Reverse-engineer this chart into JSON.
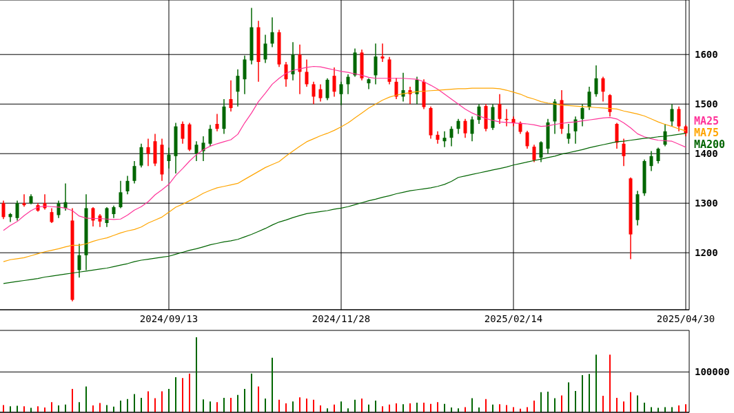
{
  "chart_data": [
    {
      "type": "candlestick",
      "categories": [
        null,
        null,
        null,
        null,
        null,
        null,
        null,
        null,
        null,
        null,
        null,
        null,
        null,
        null,
        null,
        null,
        null,
        null,
        null,
        null,
        null,
        null,
        null,
        null,
        "2024/09/13",
        null,
        null,
        null,
        null,
        null,
        null,
        null,
        null,
        null,
        null,
        null,
        null,
        null,
        null,
        null,
        null,
        null,
        null,
        null,
        null,
        null,
        null,
        null,
        null,
        "2024/11/28",
        null,
        null,
        null,
        null,
        null,
        null,
        null,
        null,
        null,
        null,
        null,
        null,
        null,
        null,
        null,
        null,
        null,
        null,
        null,
        null,
        null,
        null,
        null,
        null,
        "2025/02/14",
        null,
        null,
        null,
        null,
        null,
        null,
        null,
        null,
        null,
        null,
        null,
        null,
        null,
        null,
        null,
        null,
        null,
        null,
        null,
        null,
        null,
        null,
        null,
        null,
        "2025/04/30"
      ],
      "ohlc": [
        [
          1300,
          1305,
          1268,
          1272
        ],
        [
          1272,
          1280,
          1262,
          1278
        ],
        [
          1270,
          1305,
          1265,
          1300
        ],
        [
          1300,
          1318,
          1293,
          1296
        ],
        [
          1300,
          1318,
          1298,
          1314
        ],
        [
          1296,
          1300,
          1283,
          1285
        ],
        [
          1300,
          1318,
          1287,
          1290
        ],
        [
          1282,
          1290,
          1260,
          1262
        ],
        [
          1276,
          1305,
          1270,
          1300
        ],
        [
          1290,
          1340,
          1285,
          1302
        ],
        [
          1265,
          1290,
          1102,
          1105
        ],
        [
          1165,
          1218,
          1150,
          1195
        ],
        [
          1195,
          1318,
          1165,
          1290
        ],
        [
          1290,
          1292,
          1253,
          1265
        ],
        [
          1275,
          1278,
          1252,
          1263
        ],
        [
          1260,
          1292,
          1252,
          1290
        ],
        [
          1278,
          1295,
          1270,
          1292
        ],
        [
          1292,
          1345,
          1290,
          1322
        ],
        [
          1324,
          1355,
          1318,
          1345
        ],
        [
          1345,
          1385,
          1340,
          1375
        ],
        [
          1376,
          1420,
          1372,
          1413
        ],
        [
          1413,
          1430,
          1375,
          1400
        ],
        [
          1425,
          1440,
          1375,
          1380
        ],
        [
          1418,
          1430,
          1345,
          1358
        ],
        [
          1385,
          1412,
          1370,
          1398
        ],
        [
          1395,
          1462,
          1360,
          1455
        ],
        [
          1460,
          1465,
          1420,
          1430
        ],
        [
          1459,
          1462,
          1405,
          1408
        ],
        [
          1400,
          1425,
          1385,
          1418
        ],
        [
          1405,
          1435,
          1385,
          1422
        ],
        [
          1420,
          1458,
          1415,
          1450
        ],
        [
          1460,
          1480,
          1445,
          1450
        ],
        [
          1450,
          1510,
          1440,
          1495
        ],
        [
          1510,
          1548,
          1485,
          1492
        ],
        [
          1525,
          1570,
          1495,
          1557
        ],
        [
          1550,
          1598,
          1520,
          1590
        ],
        [
          1588,
          1694,
          1580,
          1655
        ],
        [
          1655,
          1668,
          1545,
          1585
        ],
        [
          1590,
          1640,
          1583,
          1622
        ],
        [
          1622,
          1675,
          1615,
          1645
        ],
        [
          1645,
          1650,
          1575,
          1580
        ],
        [
          1580,
          1585,
          1535,
          1550
        ],
        [
          1560,
          1625,
          1548,
          1600
        ],
        [
          1600,
          1620,
          1520,
          1565
        ],
        [
          1565,
          1590,
          1535,
          1540
        ],
        [
          1540,
          1545,
          1500,
          1515
        ],
        [
          1530,
          1540,
          1505,
          1512
        ],
        [
          1512,
          1552,
          1508,
          1549
        ],
        [
          1557,
          1574,
          1515,
          1525
        ],
        [
          1520,
          1545,
          1498,
          1540
        ],
        [
          1540,
          1560,
          1520,
          1555
        ],
        [
          1558,
          1612,
          1555,
          1604
        ],
        [
          1604,
          1610,
          1548,
          1552
        ],
        [
          1542,
          1552,
          1530,
          1550
        ],
        [
          1558,
          1622,
          1540,
          1596
        ],
        [
          1596,
          1622,
          1585,
          1592
        ],
        [
          1590,
          1595,
          1540,
          1545
        ],
        [
          1545,
          1553,
          1510,
          1515
        ],
        [
          1515,
          1563,
          1505,
          1528
        ],
        [
          1528,
          1535,
          1500,
          1520
        ],
        [
          1520,
          1555,
          1500,
          1549
        ],
        [
          1545,
          1550,
          1490,
          1494
        ],
        [
          1492,
          1495,
          1430,
          1437
        ],
        [
          1438,
          1445,
          1420,
          1428
        ],
        [
          1425,
          1445,
          1413,
          1432
        ],
        [
          1432,
          1455,
          1415,
          1450
        ],
        [
          1450,
          1470,
          1440,
          1466
        ],
        [
          1466,
          1470,
          1432,
          1441
        ],
        [
          1440,
          1475,
          1425,
          1469
        ],
        [
          1468,
          1500,
          1460,
          1495
        ],
        [
          1496,
          1500,
          1445,
          1450
        ],
        [
          1452,
          1500,
          1448,
          1494
        ],
        [
          1500,
          1520,
          1460,
          1470
        ],
        [
          1470,
          1490,
          1455,
          1468
        ],
        [
          1470,
          1475,
          1455,
          1462
        ],
        [
          1462,
          1465,
          1440,
          1444
        ],
        [
          1443,
          1446,
          1410,
          1415
        ],
        [
          1414,
          1418,
          1383,
          1387
        ],
        [
          1392,
          1425,
          1383,
          1423
        ],
        [
          1410,
          1470,
          1400,
          1463
        ],
        [
          1465,
          1510,
          1440,
          1505
        ],
        [
          1508,
          1528,
          1440,
          1450
        ],
        [
          1430,
          1460,
          1420,
          1441
        ],
        [
          1445,
          1475,
          1420,
          1469
        ],
        [
          1470,
          1500,
          1455,
          1492
        ],
        [
          1494,
          1535,
          1488,
          1525
        ],
        [
          1520,
          1578,
          1515,
          1552
        ],
        [
          1552,
          1555,
          1505,
          1525
        ],
        [
          1518,
          1520,
          1475,
          1484
        ],
        [
          1460,
          1462,
          1410,
          1422
        ],
        [
          1420,
          1430,
          1375,
          1395
        ],
        [
          1350,
          1352,
          1187,
          1237
        ],
        [
          1266,
          1325,
          1255,
          1318
        ],
        [
          1320,
          1388,
          1315,
          1385
        ],
        [
          1375,
          1405,
          1365,
          1395
        ],
        [
          1385,
          1412,
          1380,
          1410
        ],
        [
          1418,
          1460,
          1415,
          1445
        ],
        [
          1465,
          1500,
          1455,
          1490
        ],
        [
          1490,
          1495,
          1445,
          1455
        ],
        [
          1455,
          1458,
          1435,
          1441
        ]
      ],
      "colors": [
        "#ff0000",
        "#006600",
        "#006600",
        "#ff0000",
        "#006600",
        "#ff0000",
        "#ff0000",
        "#ff0000",
        "#006600",
        "#006600",
        "#ff0000",
        "#006600",
        "#006600",
        "#ff0000",
        "#ff0000",
        "#006600",
        "#006600",
        "#006600",
        "#006600",
        "#006600",
        "#006600",
        "#ff0000",
        "#ff0000",
        "#ff0000",
        "#006600",
        "#006600",
        "#ff0000",
        "#ff0000",
        "#006600",
        "#006600",
        "#006600",
        "#ff0000",
        "#006600",
        "#ff0000",
        "#006600",
        "#006600",
        "#006600",
        "#ff0000",
        "#006600",
        "#006600",
        "#ff0000",
        "#ff0000",
        "#006600",
        "#ff0000",
        "#ff0000",
        "#ff0000",
        "#ff0000",
        "#006600",
        "#ff0000",
        "#006600",
        "#006600",
        "#006600",
        "#ff0000",
        "#006600",
        "#006600",
        "#ff0000",
        "#ff0000",
        "#ff0000",
        "#006600",
        "#ff0000",
        "#006600",
        "#ff0000",
        "#ff0000",
        "#ff0000",
        "#006600",
        "#006600",
        "#006600",
        "#ff0000",
        "#006600",
        "#006600",
        "#ff0000",
        "#006600",
        "#ff0000",
        "#ff0000",
        "#ff0000",
        "#ff0000",
        "#ff0000",
        "#ff0000",
        "#006600",
        "#006600",
        "#006600",
        "#ff0000",
        "#006600",
        "#006600",
        "#006600",
        "#006600",
        "#006600",
        "#ff0000",
        "#ff0000",
        "#ff0000",
        "#ff0000",
        "#ff0000",
        "#006600",
        "#006600",
        "#006600",
        "#006600",
        "#006600",
        "#006600",
        "#ff0000",
        "#ff0000"
      ],
      "series": [
        {
          "name": "MA25",
          "type": "line",
          "color": "#ff3399",
          "values": [
            1245,
            1255,
            1263,
            1275,
            1285,
            1292,
            1294,
            1293,
            1292,
            1290,
            1285,
            1274,
            1270,
            1269,
            1269,
            1268,
            1267,
            1268,
            1276,
            1286,
            1293,
            1303,
            1317,
            1327,
            1338,
            1356,
            1370,
            1385,
            1398,
            1408,
            1415,
            1420,
            1424,
            1428,
            1439,
            1462,
            1482,
            1505,
            1522,
            1540,
            1552,
            1562,
            1568,
            1571,
            1574,
            1576,
            1575,
            1572,
            1569,
            1566,
            1564,
            1561,
            1558,
            1554,
            1552,
            1552,
            1552,
            1552,
            1552,
            1551,
            1550,
            1545,
            1538,
            1530,
            1520,
            1510,
            1500,
            1490,
            1482,
            1476,
            1471,
            1467,
            1464,
            1463,
            1462,
            1461,
            1460,
            1458,
            1455,
            1456,
            1459,
            1461,
            1463,
            1464,
            1466,
            1468,
            1470,
            1472,
            1473,
            1470,
            1462,
            1452,
            1440,
            1434,
            1430,
            1427,
            1426,
            1425,
            1419,
            1413
          ]
        },
        {
          "name": "MA75",
          "type": "line",
          "color": "#ffa500",
          "values": [
            1182,
            1186,
            1188,
            1190,
            1194,
            1198,
            1202,
            1205,
            1208,
            1212,
            1215,
            1215,
            1218,
            1223,
            1227,
            1230,
            1235,
            1240,
            1244,
            1247,
            1252,
            1260,
            1266,
            1272,
            1282,
            1292,
            1298,
            1305,
            1312,
            1320,
            1326,
            1331,
            1334,
            1337,
            1340,
            1348,
            1356,
            1364,
            1372,
            1378,
            1384,
            1395,
            1405,
            1415,
            1424,
            1430,
            1436,
            1441,
            1447,
            1454,
            1462,
            1472,
            1482,
            1492,
            1500,
            1508,
            1514,
            1518,
            1521,
            1523,
            1525,
            1526,
            1527,
            1528,
            1529,
            1530,
            1531,
            1531,
            1532,
            1532,
            1532,
            1532,
            1531,
            1528,
            1524,
            1520,
            1514,
            1510,
            1505,
            1502,
            1500,
            1498,
            1497,
            1496,
            1495,
            1494,
            1493,
            1492,
            1491,
            1490,
            1486,
            1483,
            1480,
            1476,
            1470,
            1464,
            1459,
            1455,
            1450,
            1446
          ]
        },
        {
          "name": "MA200",
          "type": "line",
          "color": "#006400",
          "values": [
            1138,
            1140,
            1142,
            1144,
            1146,
            1148,
            1151,
            1153,
            1155,
            1157,
            1159,
            1161,
            1163,
            1165,
            1167,
            1169,
            1172,
            1175,
            1178,
            1182,
            1185,
            1187,
            1189,
            1191,
            1193,
            1197,
            1201,
            1205,
            1208,
            1212,
            1216,
            1219,
            1222,
            1224,
            1227,
            1232,
            1237,
            1243,
            1249,
            1256,
            1262,
            1266,
            1271,
            1275,
            1279,
            1281,
            1283,
            1285,
            1288,
            1290,
            1293,
            1297,
            1301,
            1305,
            1308,
            1312,
            1315,
            1319,
            1322,
            1325,
            1327,
            1329,
            1331,
            1334,
            1338,
            1344,
            1352,
            1355,
            1358,
            1361,
            1364,
            1367,
            1370,
            1373,
            1377,
            1380,
            1383,
            1386,
            1389,
            1392,
            1395,
            1399,
            1402,
            1405,
            1408,
            1412,
            1415,
            1418,
            1421,
            1424,
            1425,
            1427,
            1429,
            1431,
            1432,
            1434,
            1435,
            1437,
            1439,
            1441
          ]
        }
      ],
      "ylim": [
        1085,
        1710
      ],
      "yticks": [
        1200,
        1300,
        1400,
        1500,
        1600
      ],
      "grid": true,
      "legend": "right"
    },
    {
      "type": "bar",
      "categories": [
        null,
        null,
        null,
        null,
        null,
        null,
        null,
        null,
        null,
        null,
        null,
        null,
        null,
        null,
        null,
        null,
        null,
        null,
        null,
        null,
        null,
        null,
        null,
        null,
        null,
        null,
        null,
        null,
        null,
        null,
        null,
        null,
        null,
        null,
        null,
        null,
        null,
        null,
        null,
        null,
        null,
        null,
        null,
        null,
        null,
        null,
        null,
        null,
        null,
        null,
        null,
        null,
        null,
        null,
        null,
        null,
        null,
        null,
        null,
        null,
        null,
        null,
        null,
        null,
        null,
        null,
        null,
        null,
        null,
        null,
        null,
        null,
        null,
        null,
        null,
        null,
        null,
        null,
        null,
        null,
        null,
        null,
        null,
        null,
        null,
        null,
        null,
        null,
        null,
        null,
        null,
        null,
        null,
        null,
        null,
        null,
        null,
        null,
        null,
        null
      ],
      "values": [
        18000,
        15000,
        16000,
        15000,
        11000,
        15000,
        12000,
        25000,
        17000,
        19000,
        58000,
        25000,
        64000,
        17000,
        23000,
        18000,
        14000,
        29000,
        33000,
        45000,
        36000,
        52000,
        35000,
        52000,
        58000,
        87000,
        85000,
        96000,
        186000,
        32000,
        27000,
        25000,
        36000,
        36000,
        43000,
        58000,
        96000,
        64000,
        34000,
        135000,
        31000,
        22000,
        27000,
        37000,
        34000,
        31000,
        17000,
        10000,
        19000,
        27000,
        10000,
        31000,
        34000,
        19000,
        29000,
        15000,
        19000,
        22000,
        20000,
        22000,
        24000,
        24000,
        21000,
        25000,
        21000,
        12000,
        10000,
        13000,
        35000,
        12000,
        33000,
        19000,
        20000,
        18000,
        13000,
        9000,
        13000,
        29000,
        50000,
        51000,
        35000,
        42000,
        74000,
        53000,
        92000,
        95000,
        143000,
        41000,
        143000,
        36000,
        27000,
        50000,
        42000,
        24000,
        13000,
        11000,
        13000,
        13000,
        17000,
        20000
      ],
      "colors": [
        "#ff0000",
        "#006600",
        "#006600",
        "#ff0000",
        "#006600",
        "#ff0000",
        "#ff0000",
        "#ff0000",
        "#006600",
        "#006600",
        "#ff0000",
        "#006600",
        "#006600",
        "#ff0000",
        "#ff0000",
        "#006600",
        "#006600",
        "#006600",
        "#006600",
        "#006600",
        "#006600",
        "#ff0000",
        "#ff0000",
        "#ff0000",
        "#006600",
        "#006600",
        "#ff0000",
        "#ff0000",
        "#006600",
        "#006600",
        "#006600",
        "#ff0000",
        "#006600",
        "#ff0000",
        "#006600",
        "#006600",
        "#006600",
        "#ff0000",
        "#006600",
        "#006600",
        "#ff0000",
        "#ff0000",
        "#006600",
        "#ff0000",
        "#ff0000",
        "#ff0000",
        "#ff0000",
        "#006600",
        "#ff0000",
        "#006600",
        "#006600",
        "#006600",
        "#ff0000",
        "#006600",
        "#006600",
        "#ff0000",
        "#ff0000",
        "#ff0000",
        "#006600",
        "#ff0000",
        "#006600",
        "#ff0000",
        "#ff0000",
        "#ff0000",
        "#006600",
        "#006600",
        "#006600",
        "#ff0000",
        "#006600",
        "#006600",
        "#ff0000",
        "#006600",
        "#ff0000",
        "#ff0000",
        "#ff0000",
        "#ff0000",
        "#ff0000",
        "#ff0000",
        "#006600",
        "#006600",
        "#006600",
        "#ff0000",
        "#006600",
        "#006600",
        "#006600",
        "#006600",
        "#006600",
        "#ff0000",
        "#ff0000",
        "#ff0000",
        "#ff0000",
        "#ff0000",
        "#006600",
        "#006600",
        "#006600",
        "#006600",
        "#006600",
        "#006600",
        "#ff0000",
        "#ff0000"
      ],
      "ylim": [
        0,
        203000
      ],
      "yticks": [
        100000
      ],
      "grid": "y",
      "tick_labels": "y"
    }
  ]
}
